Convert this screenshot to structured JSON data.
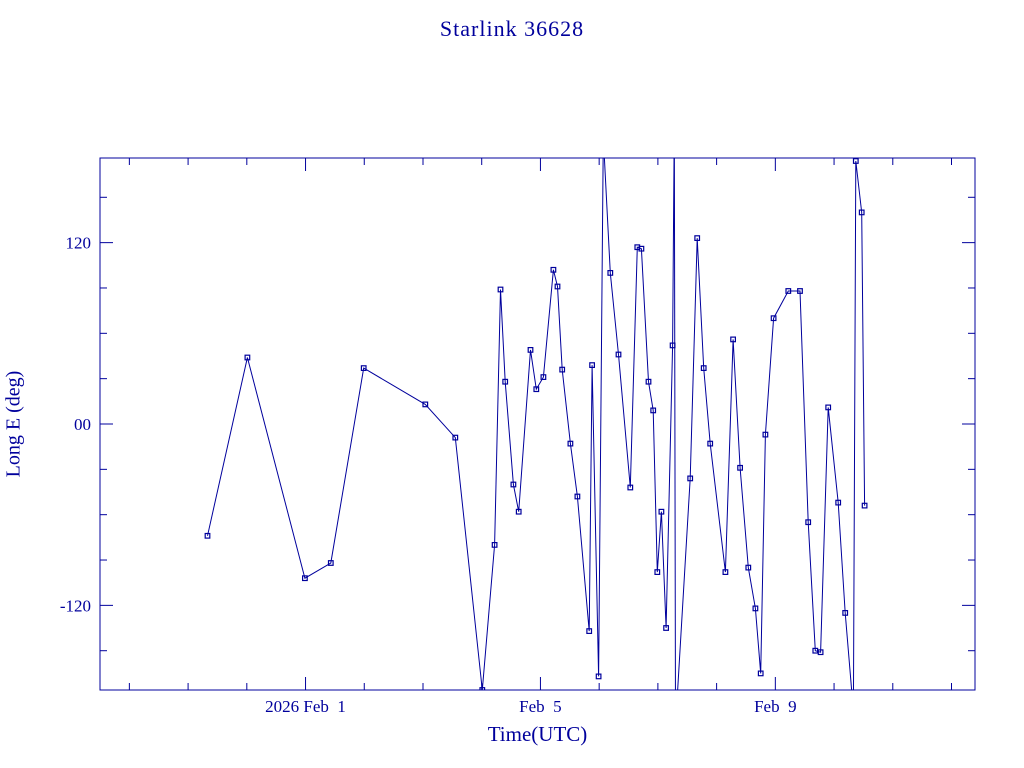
{
  "chart_data": {
    "type": "line",
    "title": "Starlink 36628",
    "xlabel": "Time(UTC)",
    "ylabel": "Long E (deg)",
    "legend": null,
    "grid": false,
    "axis_color": "#00009c",
    "series_color": "#00009c",
    "x_unit": "days (1 = 2026 Feb 1 UTC)",
    "xlim": [
      -2.5,
      12.4
    ],
    "ylim": [
      -176,
      176
    ],
    "x_minor_step": 1,
    "y_minor_step": 30,
    "xticks": [
      {
        "v": 1,
        "label": "2026 Feb  1"
      },
      {
        "v": 5,
        "label": "Feb  5"
      },
      {
        "v": 9,
        "label": "Feb  9"
      }
    ],
    "yticks": [
      {
        "v": 120,
        "label": "120"
      },
      {
        "v": 0,
        "label": "00"
      },
      {
        "v": -120,
        "label": "-120"
      }
    ],
    "points": [
      [
        -0.67,
        -74
      ],
      [
        0.01,
        44
      ],
      [
        0.99,
        -102
      ],
      [
        1.43,
        -92
      ],
      [
        1.99,
        37
      ],
      [
        3.04,
        13
      ],
      [
        3.55,
        -9
      ],
      [
        4.01,
        -176
      ],
      [
        4.22,
        -80
      ],
      [
        4.32,
        89
      ],
      [
        4.4,
        28
      ],
      [
        4.54,
        -40
      ],
      [
        4.63,
        -58
      ],
      [
        4.83,
        49
      ],
      [
        4.93,
        23
      ],
      [
        5.05,
        31
      ],
      [
        5.22,
        102
      ],
      [
        5.29,
        91
      ],
      [
        5.37,
        36
      ],
      [
        5.51,
        -13
      ],
      [
        5.63,
        -48
      ],
      [
        5.83,
        -137
      ],
      [
        5.88,
        39
      ],
      [
        5.99,
        -167
      ],
      [
        6.07,
        190
      ],
      [
        6.19,
        100
      ],
      [
        6.33,
        46
      ],
      [
        6.53,
        -42
      ],
      [
        6.65,
        117
      ],
      [
        6.72,
        116
      ],
      [
        6.84,
        28
      ],
      [
        6.92,
        9
      ],
      [
        6.99,
        -98
      ],
      [
        7.06,
        -58
      ],
      [
        7.14,
        -135
      ],
      [
        7.25,
        52
      ],
      [
        7.28,
        200
      ],
      [
        7.3,
        -200
      ],
      [
        7.55,
        -36
      ],
      [
        7.67,
        123
      ],
      [
        7.78,
        37
      ],
      [
        7.89,
        -13
      ],
      [
        8.15,
        -98
      ],
      [
        8.28,
        56
      ],
      [
        8.4,
        -29
      ],
      [
        8.54,
        -95
      ],
      [
        8.66,
        -122
      ],
      [
        8.75,
        -165
      ],
      [
        8.83,
        -7
      ],
      [
        8.97,
        70
      ],
      [
        9.22,
        88
      ],
      [
        9.42,
        88
      ],
      [
        9.56,
        -65
      ],
      [
        9.68,
        -150
      ],
      [
        9.77,
        -151
      ],
      [
        9.9,
        11
      ],
      [
        10.07,
        -52
      ],
      [
        10.19,
        -125
      ],
      [
        10.33,
        -190
      ],
      [
        10.37,
        174
      ],
      [
        10.47,
        140
      ],
      [
        10.52,
        -54
      ]
    ]
  }
}
